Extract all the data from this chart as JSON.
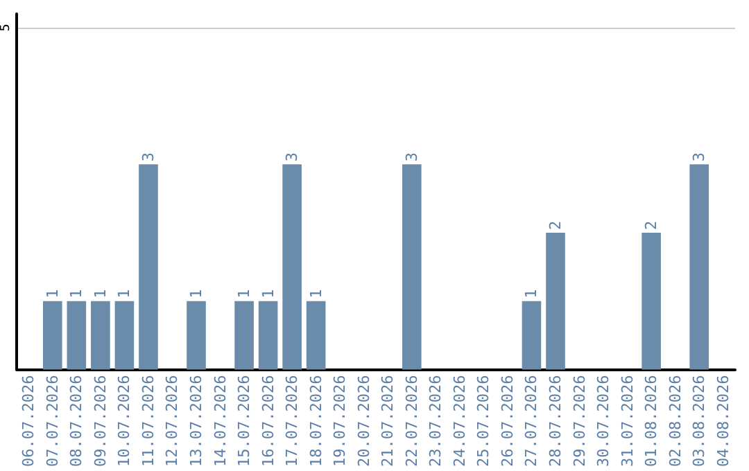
{
  "chart_data": {
    "type": "bar",
    "categories": [
      "06.07.2026",
      "07.07.2026",
      "08.07.2026",
      "09.07.2026",
      "10.07.2026",
      "11.07.2026",
      "12.07.2026",
      "13.07.2026",
      "14.07.2026",
      "15.07.2026",
      "16.07.2026",
      "17.07.2026",
      "18.07.2026",
      "19.07.2026",
      "20.07.2026",
      "21.07.2026",
      "22.07.2026",
      "23.07.2026",
      "24.07.2026",
      "25.07.2026",
      "26.07.2026",
      "27.07.2026",
      "28.07.2026",
      "29.07.2026",
      "30.07.2026",
      "31.07.2026",
      "01.08.2026",
      "02.08.2026",
      "03.08.2026",
      "04.08.2026"
    ],
    "values": [
      null,
      1,
      1,
      1,
      1,
      3,
      null,
      1,
      null,
      1,
      1,
      3,
      1,
      null,
      null,
      null,
      3,
      null,
      null,
      null,
      null,
      1,
      2,
      null,
      null,
      null,
      2,
      null,
      3,
      null
    ],
    "color": "#6a8caa",
    "ylim": [
      0,
      5.2
    ],
    "yticks": [
      {
        "value": 0,
        "label": null
      },
      5
    ],
    "grid": "y",
    "data_labels": true
  }
}
